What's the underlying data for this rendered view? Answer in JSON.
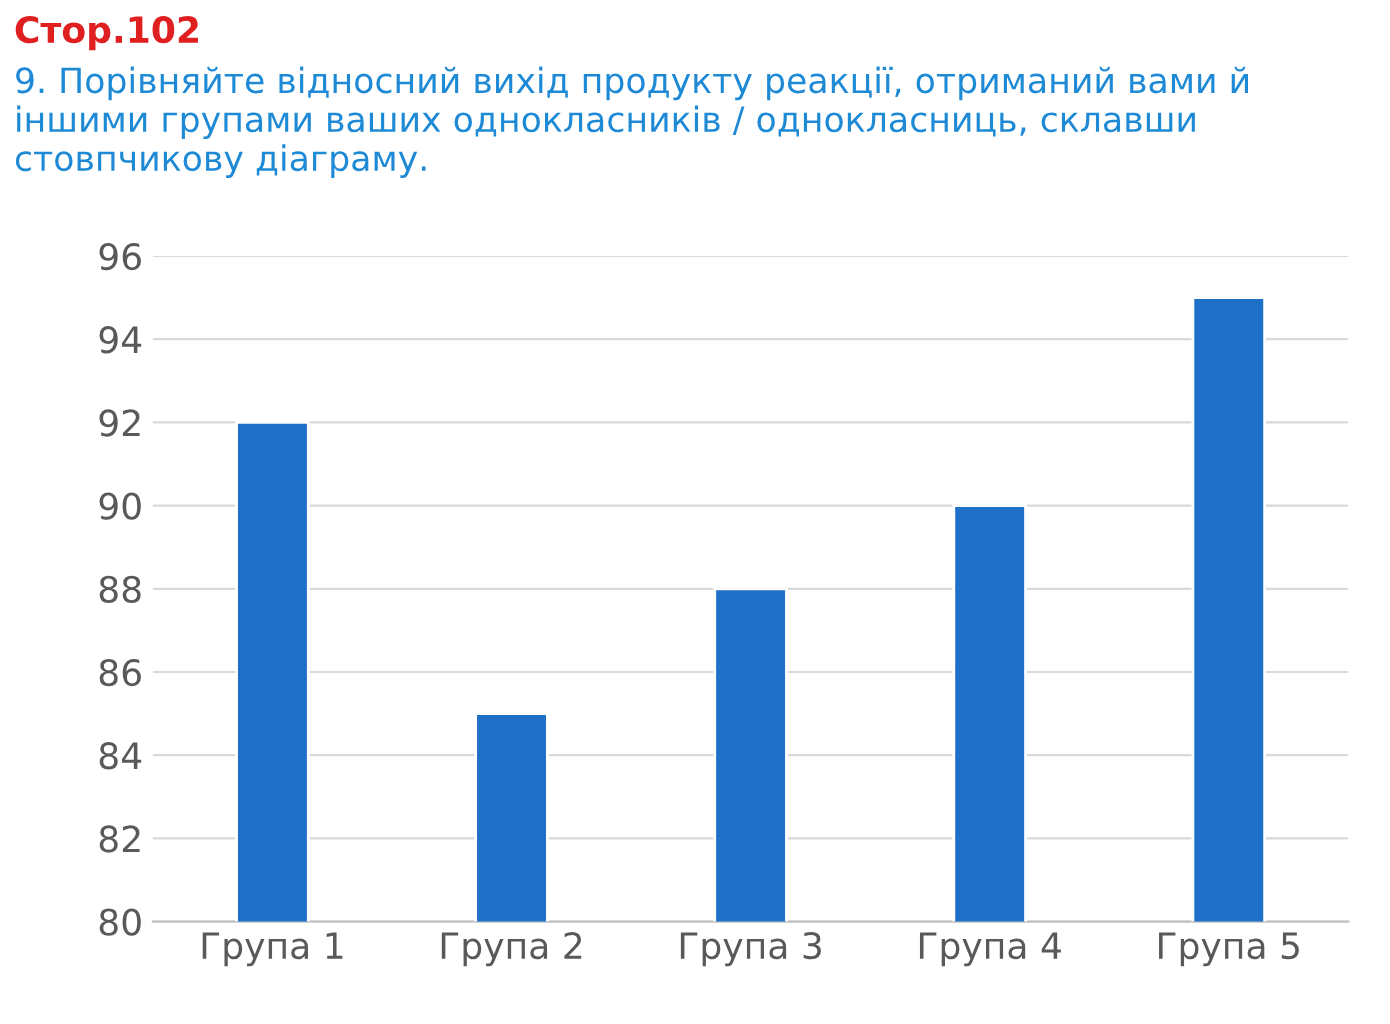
{
  "chart_data": {
    "type": "bar",
    "title": "Стор.102",
    "subtitle": "9. Порівняйте відносний вихід продукту реакції, отриманий вами й іншими групами ваших однокласників / однокласниць, склавши стовпчикову діаграму.",
    "categories": [
      "Група 1",
      "Група 2",
      "Група 3",
      "Група 4",
      "Група 5"
    ],
    "values": [
      92,
      85,
      88,
      90,
      95
    ],
    "color": "#1f70c8",
    "ylim": [
      80,
      96
    ],
    "yticks": [
      80,
      82,
      84,
      86,
      88,
      90,
      92,
      94,
      96
    ],
    "grid": "y"
  }
}
